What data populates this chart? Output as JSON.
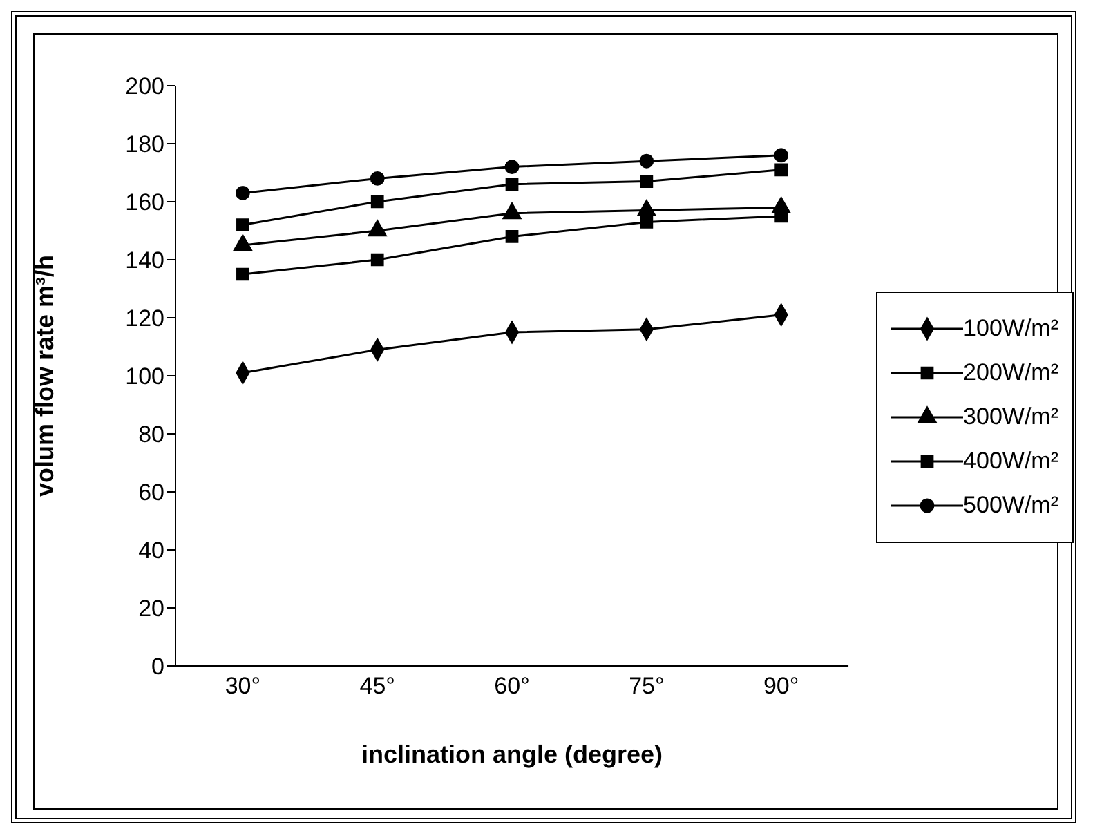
{
  "chart_data": {
    "type": "line",
    "xlabel": "inclination angle (degree)",
    "ylabel": "volum flow rate m³/h",
    "categories": [
      "30°",
      "45°",
      "60°",
      "75°",
      "90°"
    ],
    "series": [
      {
        "name": "100W/m²",
        "color": "#000000",
        "marker": "diamond",
        "values": [
          101,
          109,
          115,
          116,
          121
        ]
      },
      {
        "name": "200W/m²",
        "color": "#000000",
        "marker": "square",
        "values": [
          135,
          140,
          148,
          153,
          155
        ]
      },
      {
        "name": "300W/m²",
        "color": "#000000",
        "marker": "triangle",
        "values": [
          145,
          150,
          156,
          157,
          158
        ]
      },
      {
        "name": "400W/m²",
        "color": "#000000",
        "marker": "square",
        "values": [
          152,
          160,
          166,
          167,
          171
        ]
      },
      {
        "name": "500W/m²",
        "color": "#000000",
        "marker": "circle",
        "values": [
          163,
          168,
          172,
          174,
          176
        ]
      }
    ],
    "ylim": [
      0,
      200
    ],
    "yticks": [
      0,
      20,
      40,
      60,
      80,
      100,
      120,
      140,
      160,
      180,
      200
    ],
    "grid": false,
    "legend": "right",
    "line_style": "solid"
  }
}
